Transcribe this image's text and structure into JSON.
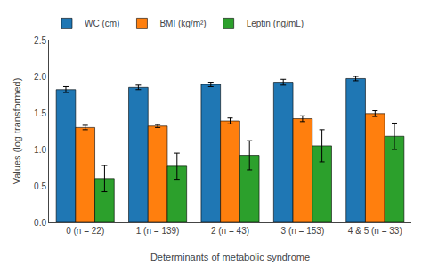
{
  "chart_data": {
    "type": "bar",
    "xlabel": "Determinants of metabolic syndrome",
    "ylabel": "Values (log transformed)",
    "categories": [
      "0 (n = 22)",
      "1 (n = 139)",
      "2 (n = 43)",
      "3 (n = 153)",
      "4 & 5 (n = 33)"
    ],
    "series": [
      {
        "name": "WC (cm)",
        "values": [
          1.82,
          1.85,
          1.89,
          1.92,
          1.97
        ],
        "errors": [
          0.04,
          0.03,
          0.03,
          0.04,
          0.03
        ]
      },
      {
        "name": "BMI (kg/m²)",
        "values": [
          1.3,
          1.32,
          1.39,
          1.42,
          1.49
        ],
        "errors": [
          0.03,
          0.02,
          0.04,
          0.04,
          0.04
        ]
      },
      {
        "name": "Leptin (ng/mL)",
        "values": [
          0.6,
          0.77,
          0.92,
          1.05,
          1.18
        ],
        "errors": [
          0.18,
          0.18,
          0.2,
          0.22,
          0.18
        ]
      }
    ],
    "ylim": [
      0,
      2.5
    ],
    "yticks": [
      {
        "value": 0,
        "label": "0.0"
      },
      0.5,
      {
        "value": 1.0,
        "label": "1.0"
      },
      1.5,
      {
        "value": 2.0,
        "label": "2.0"
      },
      2.5
    ],
    "grid": false,
    "legend": "upper left"
  }
}
